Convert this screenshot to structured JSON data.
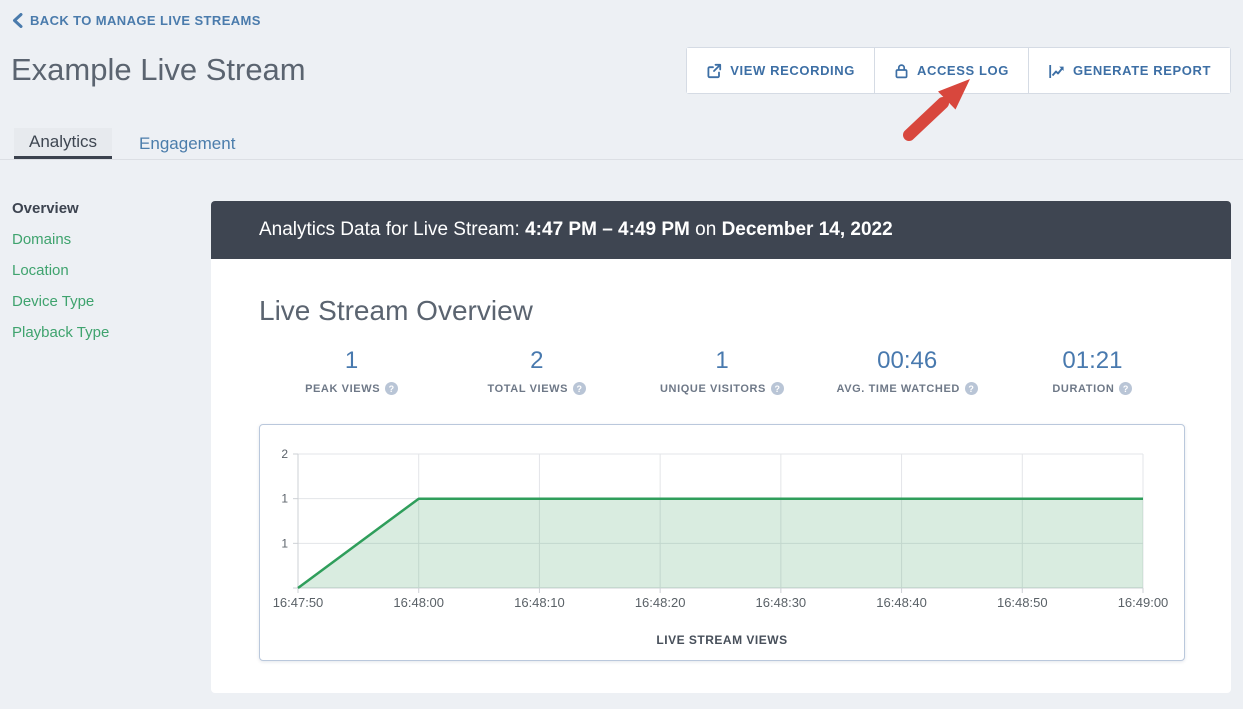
{
  "header": {
    "back_link": "BACK TO MANAGE LIVE STREAMS",
    "title": "Example Live Stream",
    "buttons": [
      {
        "label": "VIEW RECORDING",
        "icon": "share-export-icon"
      },
      {
        "label": "ACCESS LOG",
        "icon": "lock-icon"
      },
      {
        "label": "GENERATE REPORT",
        "icon": "trend-chart-icon"
      }
    ]
  },
  "annotation": {
    "type": "red-arrow",
    "points_at": "ACCESS LOG",
    "color": "#d8473d"
  },
  "tabs": [
    {
      "label": "Analytics",
      "active": true
    },
    {
      "label": "Engagement",
      "active": false
    }
  ],
  "sidebar": {
    "items": [
      {
        "label": "Overview",
        "active": true
      },
      {
        "label": "Domains",
        "active": false
      },
      {
        "label": "Location",
        "active": false
      },
      {
        "label": "Device Type",
        "active": false
      },
      {
        "label": "Playback Type",
        "active": false
      }
    ]
  },
  "banner": {
    "prefix": "Analytics Data for Live Stream: ",
    "time_range": "4:47 PM – 4:49 PM",
    "connector": " on ",
    "date": "December 14, 2022"
  },
  "overview": {
    "heading": "Live Stream Overview",
    "stats": [
      {
        "value": "1",
        "label": "PEAK VIEWS"
      },
      {
        "value": "2",
        "label": "TOTAL VIEWS"
      },
      {
        "value": "1",
        "label": "UNIQUE VISITORS"
      },
      {
        "value": "00:46",
        "label": "AVG. TIME WATCHED"
      },
      {
        "value": "01:21",
        "label": "DURATION"
      }
    ]
  },
  "icons": {
    "help": "?"
  },
  "chart_data": {
    "type": "area",
    "title": "LIVE STREAM VIEWS",
    "series_name": "Live Stream Views",
    "x_tick_labels": [
      "16:47:50",
      "16:48:00",
      "16:48:10",
      "16:48:20",
      "16:48:30",
      "16:48:40",
      "16:48:50",
      "16:49:00"
    ],
    "y_tick_labels": [
      "2",
      "1",
      "1"
    ],
    "x_range_seconds": [
      0,
      70
    ],
    "y_display_max": 1.5,
    "points": [
      {
        "time": "16:47:50",
        "seconds": 0,
        "views": 0
      },
      {
        "time": "16:48:00",
        "seconds": 10,
        "views": 1
      },
      {
        "time": "16:49:00",
        "seconds": 70,
        "views": 1
      }
    ],
    "grid": true,
    "legend": false,
    "line_color": "#2f9e5b",
    "fill_color": "rgba(63,160,100,0.20)"
  }
}
